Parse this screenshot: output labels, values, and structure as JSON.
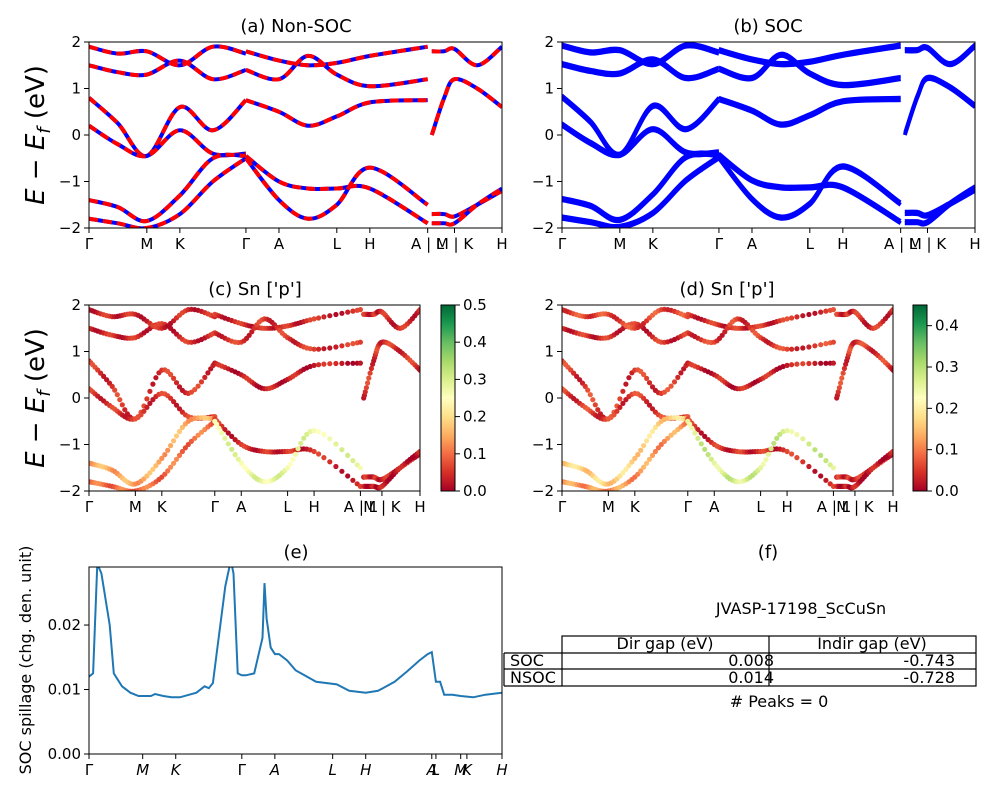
{
  "panels": {
    "a": {
      "title": "(a) Non-SOC"
    },
    "b": {
      "title": "(b) SOC"
    },
    "c": {
      "title": "(c)  Sn ['p']"
    },
    "d": {
      "title": "(d) Sn ['p']"
    },
    "e": {
      "title": "(e)"
    },
    "f": {
      "title": "(f)"
    }
  },
  "band_ylabel": "E − E",
  "band_ylabel_sub": "f",
  "band_ylabel_unit": " (eV)",
  "table": {
    "material": "JVASP-17198_ScCuSn",
    "columns": [
      "",
      "Dir gap (eV)",
      "Indir gap (eV)"
    ],
    "rows": [
      {
        "label": "SOC",
        "dir": "0.008",
        "indir": "-0.743"
      },
      {
        "label": "NSOC",
        "dir": "0.014",
        "indir": "-0.728"
      }
    ],
    "peaks": "# Peaks = 0"
  },
  "colors": {
    "nonsoc_red": "#ff0000",
    "nonsoc_blue": "#0000ff",
    "soc_blue": "#0000ff",
    "spillage_line": "#1f77b4"
  },
  "chart_data": [
    {
      "type": "line",
      "panel": "a",
      "title": "(a) Non-SOC",
      "ylabel": "E − E_f (eV)",
      "ylim": [
        -2,
        2
      ],
      "yticks": [
        -2,
        -1,
        0,
        1,
        2
      ],
      "kpath_labels": [
        "Γ",
        "M",
        "K",
        "Γ",
        "A",
        "L",
        "H",
        "A | L",
        "M | K",
        "H"
      ],
      "kpath_positions": [
        0,
        0.14,
        0.22,
        0.38,
        0.46,
        0.6,
        0.68,
        0.82,
        0.885,
        1.0
      ],
      "series": [
        {
          "x": [
            0,
            0.07,
            0.14,
            0.22,
            0.3,
            0.38
          ],
          "y": [
            0.8,
            0.25,
            -0.45,
            0.6,
            0.1,
            0.75
          ]
        },
        {
          "x": [
            0,
            0.07,
            0.14,
            0.22,
            0.3,
            0.38
          ],
          "y": [
            0.2,
            -0.2,
            -0.45,
            0.1,
            -0.4,
            -0.4
          ]
        },
        {
          "x": [
            0,
            0.07,
            0.14,
            0.22,
            0.3,
            0.38
          ],
          "y": [
            1.5,
            1.35,
            1.3,
            1.6,
            1.2,
            1.4
          ]
        },
        {
          "x": [
            0,
            0.07,
            0.14,
            0.22,
            0.3,
            0.38
          ],
          "y": [
            1.9,
            1.75,
            1.8,
            1.5,
            1.9,
            1.75
          ]
        },
        {
          "x": [
            0,
            0.07,
            0.14,
            0.22,
            0.3,
            0.38
          ],
          "y": [
            -1.4,
            -1.55,
            -1.85,
            -1.3,
            -0.5,
            -0.45
          ]
        },
        {
          "x": [
            0,
            0.07,
            0.14,
            0.22,
            0.3,
            0.38
          ],
          "y": [
            -1.8,
            -1.9,
            -2.0,
            -1.7,
            -1.0,
            -0.5
          ]
        },
        {
          "x": [
            0.38,
            0.46,
            0.53,
            0.6,
            0.68,
            0.82
          ],
          "y": [
            0.75,
            0.5,
            0.2,
            0.4,
            0.7,
            0.75
          ]
        },
        {
          "x": [
            0.38,
            0.46,
            0.53,
            0.6,
            0.68,
            0.82
          ],
          "y": [
            -0.45,
            -1.0,
            -1.15,
            -1.15,
            -1.15,
            -1.9
          ]
        },
        {
          "x": [
            0.38,
            0.46,
            0.53,
            0.6,
            0.68,
            0.82
          ],
          "y": [
            1.8,
            1.6,
            1.5,
            1.55,
            1.7,
            1.9
          ]
        },
        {
          "x": [
            0.38,
            0.46,
            0.53,
            0.6,
            0.68,
            0.82
          ],
          "y": [
            1.4,
            1.2,
            1.7,
            1.3,
            1.05,
            1.2
          ]
        },
        {
          "x": [
            0.38,
            0.46,
            0.53,
            0.6,
            0.68,
            0.82
          ],
          "y": [
            -0.5,
            -1.4,
            -1.8,
            -1.5,
            -0.7,
            -1.5
          ]
        },
        {
          "x": [
            0.83,
            0.86,
            0.885,
            0.94,
            1.0
          ],
          "y": [
            0.0,
            0.8,
            1.2,
            1.0,
            0.6
          ]
        },
        {
          "x": [
            0.83,
            0.86,
            0.885,
            0.94,
            1.0
          ],
          "y": [
            -1.7,
            -1.7,
            -1.75,
            -1.5,
            -1.2
          ]
        },
        {
          "x": [
            0.83,
            0.86,
            0.885,
            0.94,
            1.0
          ],
          "y": [
            1.8,
            1.8,
            1.85,
            1.5,
            1.9
          ]
        },
        {
          "x": [
            0.83,
            0.86,
            0.885,
            0.94,
            1.0
          ],
          "y": [
            -1.9,
            -1.9,
            -1.9,
            -1.5,
            -1.15
          ]
        }
      ]
    },
    {
      "type": "line",
      "panel": "b",
      "title": "(b) SOC",
      "ylim": [
        -2,
        2
      ],
      "yticks": [
        -2,
        -1,
        0,
        1,
        2
      ],
      "kpath_labels": [
        "Γ",
        "M",
        "K",
        "Γ",
        "A",
        "L",
        "H",
        "A | L",
        "M | K",
        "H"
      ],
      "kpath_positions": [
        0,
        0.14,
        0.22,
        0.38,
        0.46,
        0.6,
        0.68,
        0.82,
        0.885,
        1.0
      ],
      "series": [
        {
          "x": [
            0,
            0.07,
            0.14,
            0.22,
            0.3,
            0.38
          ],
          "y": [
            0.8,
            0.25,
            -0.45,
            0.6,
            0.1,
            0.75
          ]
        },
        {
          "x": [
            0,
            0.07,
            0.14,
            0.22,
            0.3,
            0.38
          ],
          "y": [
            0.2,
            -0.2,
            -0.45,
            0.1,
            -0.4,
            -0.4
          ]
        },
        {
          "x": [
            0,
            0.07,
            0.14,
            0.22,
            0.3,
            0.38
          ],
          "y": [
            1.5,
            1.35,
            1.3,
            1.6,
            1.2,
            1.4
          ]
        },
        {
          "x": [
            0,
            0.07,
            0.14,
            0.22,
            0.3,
            0.38
          ],
          "y": [
            1.9,
            1.75,
            1.8,
            1.5,
            1.9,
            1.75
          ]
        },
        {
          "x": [
            0,
            0.07,
            0.14,
            0.22,
            0.3,
            0.38
          ],
          "y": [
            -1.4,
            -1.55,
            -1.85,
            -1.3,
            -0.5,
            -0.45
          ]
        },
        {
          "x": [
            0,
            0.07,
            0.14,
            0.22,
            0.3,
            0.38
          ],
          "y": [
            -1.8,
            -1.9,
            -2.0,
            -1.7,
            -1.0,
            -0.5
          ]
        },
        {
          "x": [
            0.38,
            0.46,
            0.53,
            0.6,
            0.68,
            0.82
          ],
          "y": [
            0.75,
            0.5,
            0.2,
            0.4,
            0.7,
            0.75
          ]
        },
        {
          "x": [
            0.38,
            0.46,
            0.53,
            0.6,
            0.68,
            0.82
          ],
          "y": [
            -0.45,
            -1.0,
            -1.15,
            -1.15,
            -1.15,
            -1.9
          ]
        },
        {
          "x": [
            0.38,
            0.46,
            0.53,
            0.6,
            0.68,
            0.82
          ],
          "y": [
            1.8,
            1.6,
            1.5,
            1.55,
            1.7,
            1.9
          ]
        },
        {
          "x": [
            0.38,
            0.46,
            0.53,
            0.6,
            0.68,
            0.82
          ],
          "y": [
            1.4,
            1.2,
            1.7,
            1.3,
            1.05,
            1.2
          ]
        },
        {
          "x": [
            0.38,
            0.46,
            0.53,
            0.6,
            0.68,
            0.82
          ],
          "y": [
            -0.5,
            -1.4,
            -1.8,
            -1.5,
            -0.7,
            -1.5
          ]
        },
        {
          "x": [
            0.83,
            0.86,
            0.885,
            0.94,
            1.0
          ],
          "y": [
            0.0,
            0.8,
            1.2,
            1.0,
            0.6
          ]
        },
        {
          "x": [
            0.83,
            0.86,
            0.885,
            0.94,
            1.0
          ],
          "y": [
            -1.7,
            -1.7,
            -1.75,
            -1.5,
            -1.2
          ]
        },
        {
          "x": [
            0.83,
            0.86,
            0.885,
            0.94,
            1.0
          ],
          "y": [
            1.8,
            1.8,
            1.85,
            1.5,
            1.9
          ]
        },
        {
          "x": [
            0.83,
            0.86,
            0.885,
            0.94,
            1.0
          ],
          "y": [
            -1.9,
            -1.9,
            -1.9,
            -1.5,
            -1.15
          ]
        }
      ]
    },
    {
      "type": "scatter",
      "panel": "c",
      "title": "(c)  Sn ['p']",
      "ylabel": "E − E_f (eV)",
      "ylim": [
        -2,
        2
      ],
      "yticks": [
        -2,
        -1,
        0,
        1,
        2
      ],
      "colorbar": {
        "min": 0.0,
        "max": 0.5,
        "ticks": [
          0.0,
          0.1,
          0.2,
          0.3,
          0.4,
          0.5
        ],
        "colormap": "RdYlGn"
      },
      "kpath_labels": [
        "Γ",
        "M",
        "K",
        "Γ",
        "A",
        "L",
        "H",
        "A | L",
        "M | K",
        "H"
      ],
      "kpath_positions": [
        0,
        0.14,
        0.22,
        0.38,
        0.46,
        0.6,
        0.68,
        0.82,
        0.885,
        1.0
      ],
      "weights": [
        0.05,
        0.05,
        0.04,
        0.04,
        0.15,
        0.1,
        0.03,
        0.04,
        0.04,
        0.05,
        0.28,
        0.05,
        0.04,
        0.04,
        0.02
      ]
    },
    {
      "type": "scatter",
      "panel": "d",
      "title": "(d) Sn ['p']",
      "ylim": [
        -2,
        2
      ],
      "yticks": [
        -2,
        -1,
        0,
        1,
        2
      ],
      "colorbar": {
        "min": 0.0,
        "max": 0.45,
        "ticks": [
          0.0,
          0.1,
          0.2,
          0.3,
          0.4
        ],
        "colormap": "RdYlGn"
      },
      "kpath_labels": [
        "Γ",
        "M",
        "K",
        "Γ",
        "A",
        "L",
        "H",
        "A | L",
        "M | K",
        "H"
      ],
      "kpath_positions": [
        0,
        0.14,
        0.22,
        0.38,
        0.46,
        0.6,
        0.68,
        0.82,
        0.885,
        1.0
      ],
      "weights": [
        0.05,
        0.05,
        0.04,
        0.06,
        0.17,
        0.12,
        0.03,
        0.04,
        0.04,
        0.05,
        0.27,
        0.05,
        0.04,
        0.04,
        0.02
      ]
    },
    {
      "type": "line",
      "panel": "e",
      "title": "(e)",
      "ylabel": "SOC spillage (chg. den. unit)",
      "ylim": [
        0.0,
        0.029
      ],
      "yticks": [
        0.0,
        0.01,
        0.02
      ],
      "xtick_labels": [
        "Γ",
        "M",
        "K",
        "Γ",
        "A",
        "L",
        "H",
        "A",
        "L",
        "M",
        "K",
        "H"
      ],
      "xtick_positions": [
        0,
        0.13,
        0.21,
        0.37,
        0.45,
        0.59,
        0.67,
        0.83,
        0.84,
        0.9,
        0.915,
        1.0
      ],
      "x": [
        0,
        0.01,
        0.02,
        0.03,
        0.05,
        0.06,
        0.08,
        0.1,
        0.12,
        0.13,
        0.15,
        0.16,
        0.18,
        0.2,
        0.22,
        0.26,
        0.28,
        0.29,
        0.3,
        0.31,
        0.33,
        0.34,
        0.345,
        0.35,
        0.36,
        0.37,
        0.38,
        0.4,
        0.42,
        0.425,
        0.43,
        0.44,
        0.45,
        0.46,
        0.48,
        0.5,
        0.55,
        0.6,
        0.63,
        0.67,
        0.7,
        0.74,
        0.77,
        0.8,
        0.82,
        0.83,
        0.84,
        0.85,
        0.86,
        0.88,
        0.9,
        0.93,
        0.96,
        1.0
      ],
      "y": [
        0.012,
        0.0125,
        0.0295,
        0.028,
        0.02,
        0.0125,
        0.0105,
        0.0095,
        0.009,
        0.009,
        0.009,
        0.0093,
        0.009,
        0.0088,
        0.0088,
        0.0095,
        0.0105,
        0.0102,
        0.011,
        0.016,
        0.026,
        0.029,
        0.0295,
        0.028,
        0.0125,
        0.0122,
        0.0122,
        0.0125,
        0.018,
        0.0265,
        0.021,
        0.0165,
        0.0155,
        0.0155,
        0.0145,
        0.013,
        0.0112,
        0.0108,
        0.0098,
        0.0095,
        0.0098,
        0.0112,
        0.0128,
        0.0145,
        0.0155,
        0.0158,
        0.0112,
        0.0112,
        0.0092,
        0.0092,
        0.009,
        0.0088,
        0.0092,
        0.0095
      ]
    }
  ]
}
